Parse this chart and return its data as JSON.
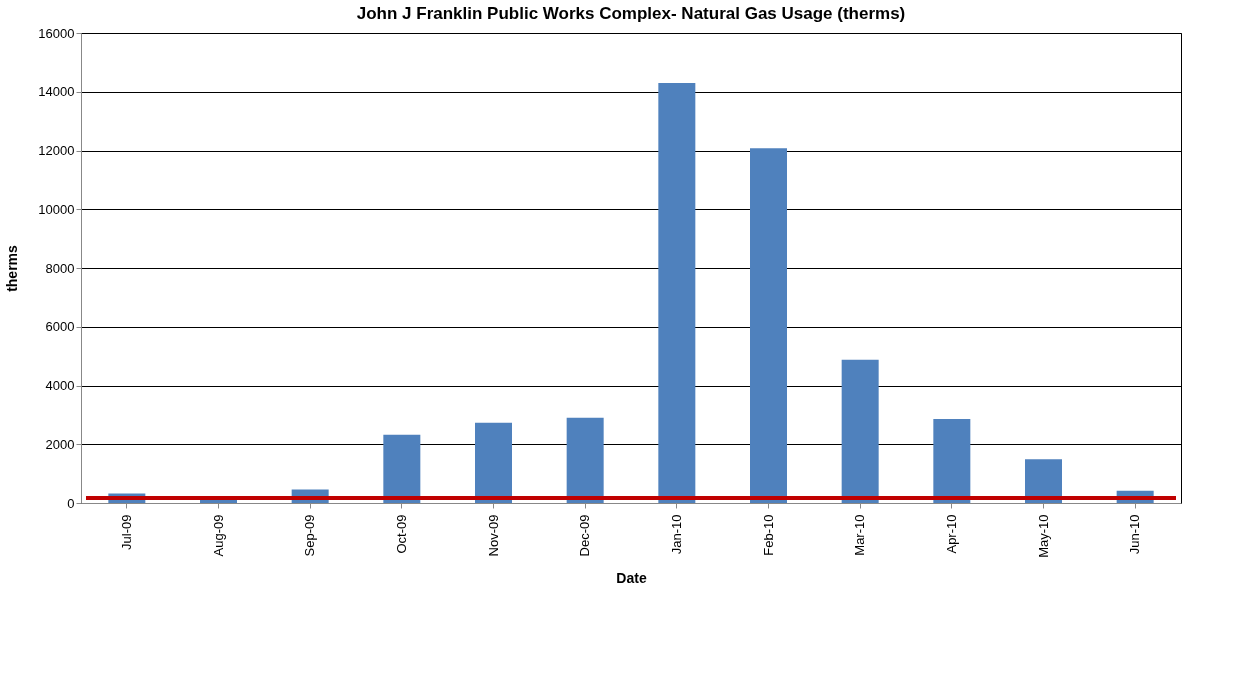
{
  "chart_data": {
    "type": "bar",
    "title": "John J Franklin Public Works Complex- Natural Gas Usage (therms)",
    "xlabel": "Date",
    "ylabel": "therms",
    "categories": [
      "Jul-09",
      "Aug-09",
      "Sep-09",
      "Oct-09",
      "Nov-09",
      "Dec-09",
      "Jan-10",
      "Feb-10",
      "Mar-10",
      "Apr-10",
      "May-10",
      "Jun-10"
    ],
    "values": [
      320,
      180,
      460,
      2320,
      2730,
      2900,
      14300,
      12080,
      4880,
      2860,
      1490,
      420
    ],
    "color": "#4f81bd",
    "ylim": [
      0,
      16000
    ],
    "yticks": [
      0,
      2000,
      4000,
      6000,
      8000,
      10000,
      12000,
      14000,
      16000
    ],
    "grid": "y",
    "ref_lines": [
      {
        "axis": "y",
        "value": 170,
        "label": null,
        "color": "#c00000"
      }
    ]
  }
}
